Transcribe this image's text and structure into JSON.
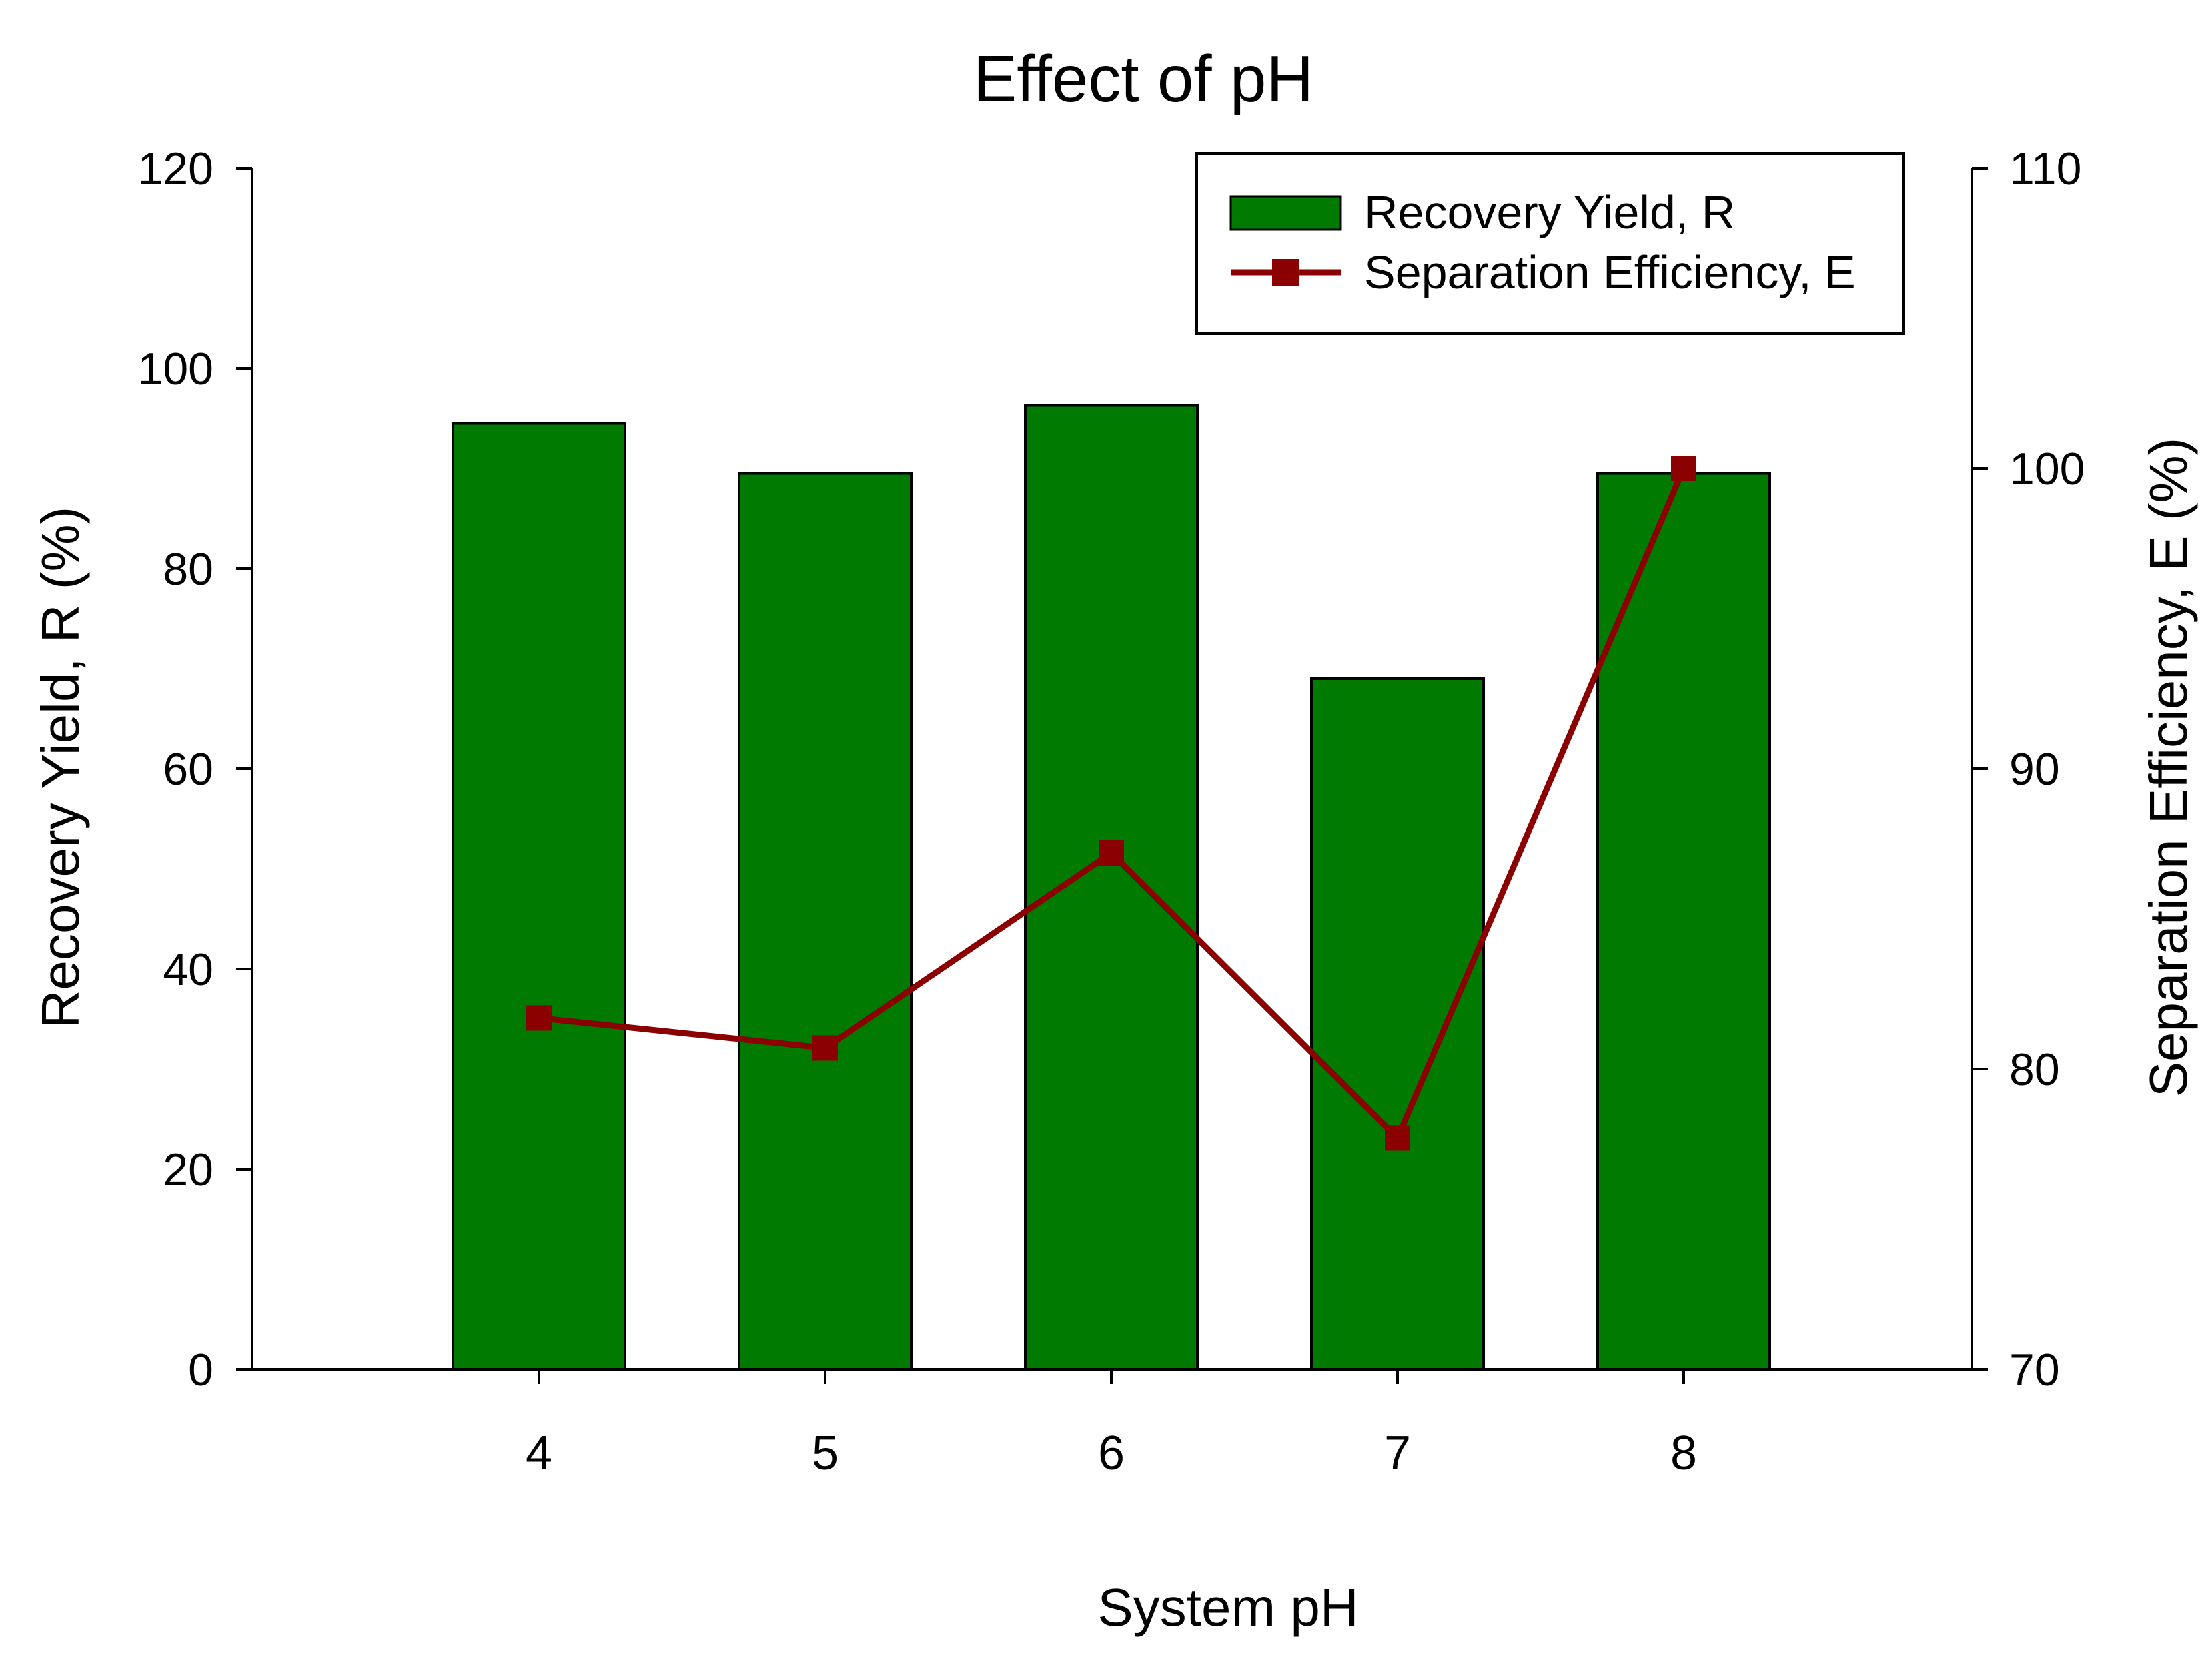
{
  "chart_data": {
    "type": "bar",
    "title": "Effect of pH",
    "xlabel": "System pH",
    "ylabel": "Recovery Yield, R (%)",
    "y2label": "Separation Efficiency, E (%)",
    "categories": [
      "4",
      "5",
      "6",
      "7",
      "8"
    ],
    "ylim": [
      0,
      120
    ],
    "y2lim": [
      70,
      110
    ],
    "yticks": [
      "0",
      "20",
      "40",
      "60",
      "80",
      "100",
      "120"
    ],
    "y2ticks": [
      "70",
      "80",
      "90",
      "100",
      "110"
    ],
    "legend_position": "top-right",
    "series": [
      {
        "name": "Recovery Yield, R",
        "type": "bar",
        "axis": "left",
        "color": "#007a00",
        "values": [
          94.5,
          89.5,
          96.3,
          69.0,
          89.5
        ]
      },
      {
        "name": "Separation Efficiency, E",
        "type": "line",
        "axis": "right",
        "color": "#8b0000",
        "marker": "square",
        "values": [
          81.7,
          80.7,
          87.2,
          77.7,
          100.0
        ]
      }
    ]
  }
}
